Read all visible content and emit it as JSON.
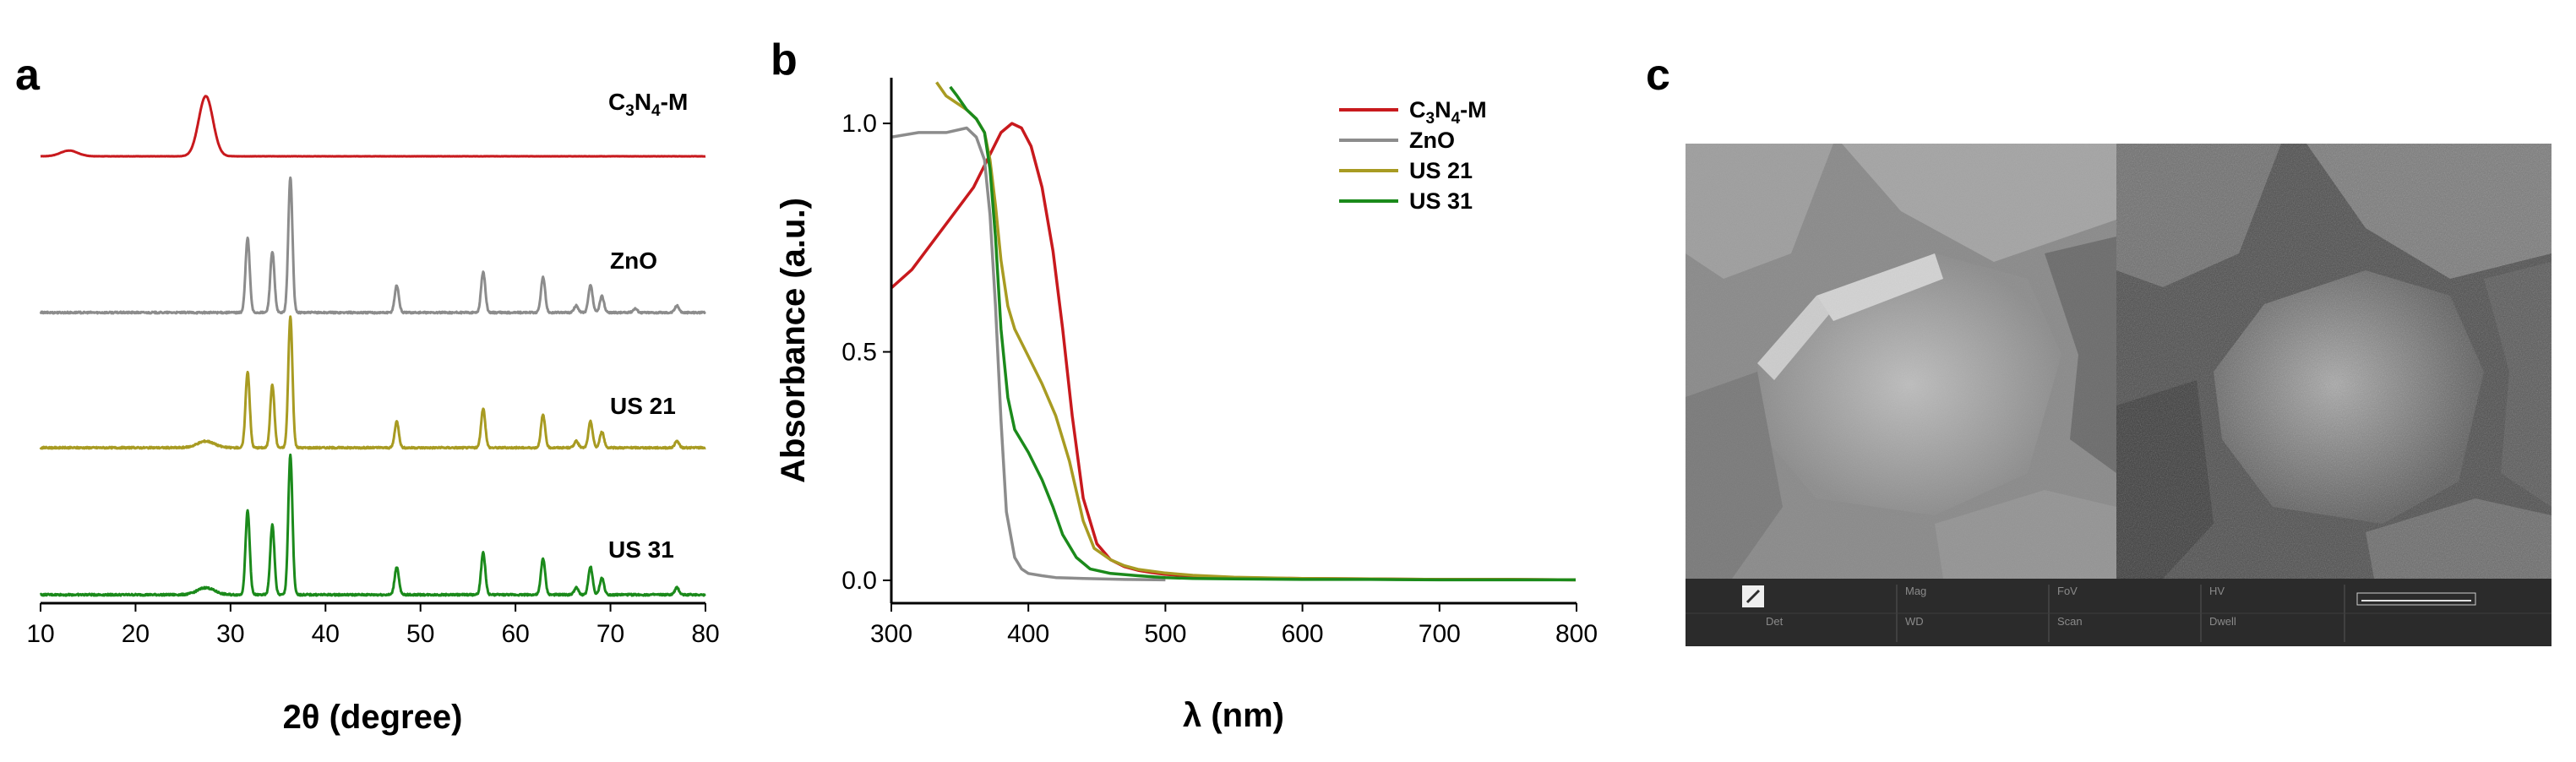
{
  "chart_data": [
    {
      "panel": "a",
      "type": "line",
      "xlabel": "2θ (degree)",
      "ylabel": "",
      "xlim": [
        10,
        80
      ],
      "xticks": [
        10,
        20,
        30,
        40,
        50,
        60,
        70,
        80
      ],
      "series": [
        {
          "name": "C3N4-M",
          "label_parts": [
            "C",
            "3",
            "N",
            "4",
            "-M"
          ],
          "color": "#c8191d",
          "peaks": [
            {
              "x": 13.0,
              "h": 0.09,
              "w": 0.9
            },
            {
              "x": 27.4,
              "h": 0.95,
              "w": 0.75
            }
          ]
        },
        {
          "name": "ZnO",
          "label": "ZnO",
          "color": "#8c8c8c",
          "peaks": [
            {
              "x": 31.8,
              "h": 0.55
            },
            {
              "x": 34.4,
              "h": 0.45
            },
            {
              "x": 36.3,
              "h": 1.0
            },
            {
              "x": 47.5,
              "h": 0.2
            },
            {
              "x": 56.6,
              "h": 0.3
            },
            {
              "x": 62.9,
              "h": 0.26
            },
            {
              "x": 66.4,
              "h": 0.05
            },
            {
              "x": 67.9,
              "h": 0.2
            },
            {
              "x": 69.1,
              "h": 0.12
            },
            {
              "x": 72.6,
              "h": 0.03
            },
            {
              "x": 77.0,
              "h": 0.05
            }
          ]
        },
        {
          "name": "US 21",
          "label": "US 21",
          "color": "#a89b22",
          "peaks": [
            {
              "x": 27.4,
              "h": 0.05,
              "w": 0.9
            },
            {
              "x": 31.8,
              "h": 0.58
            },
            {
              "x": 34.4,
              "h": 0.48
            },
            {
              "x": 36.3,
              "h": 1.0
            },
            {
              "x": 47.5,
              "h": 0.2
            },
            {
              "x": 56.6,
              "h": 0.3
            },
            {
              "x": 62.9,
              "h": 0.25
            },
            {
              "x": 66.4,
              "h": 0.05
            },
            {
              "x": 67.9,
              "h": 0.2
            },
            {
              "x": 69.1,
              "h": 0.12
            },
            {
              "x": 77.0,
              "h": 0.05
            }
          ]
        },
        {
          "name": "US 31",
          "label": "US 31",
          "color": "#1b8a1b",
          "peaks": [
            {
              "x": 27.4,
              "h": 0.05,
              "w": 0.9
            },
            {
              "x": 31.8,
              "h": 0.6
            },
            {
              "x": 34.4,
              "h": 0.5
            },
            {
              "x": 36.3,
              "h": 1.0
            },
            {
              "x": 47.5,
              "h": 0.2
            },
            {
              "x": 56.6,
              "h": 0.3
            },
            {
              "x": 62.9,
              "h": 0.26
            },
            {
              "x": 66.4,
              "h": 0.05
            },
            {
              "x": 67.9,
              "h": 0.2
            },
            {
              "x": 69.1,
              "h": 0.12
            },
            {
              "x": 77.0,
              "h": 0.05
            }
          ]
        }
      ]
    },
    {
      "panel": "b",
      "type": "line",
      "xlabel": "λ (nm)",
      "ylabel": "Absorbance (a.u.)",
      "xlim": [
        300,
        800
      ],
      "ylim": [
        -0.05,
        1.1
      ],
      "xticks": [
        300,
        400,
        500,
        600,
        700,
        800
      ],
      "yticks": [
        "0.0",
        "0.5",
        "1.0"
      ],
      "legend_position": "top-right",
      "series": [
        {
          "name": "C3N4-M",
          "label_parts": [
            "C",
            "3",
            "N",
            "4",
            "-M"
          ],
          "color": "#c8191d",
          "x": [
            300,
            315,
            330,
            345,
            360,
            370,
            380,
            388,
            395,
            402,
            410,
            418,
            425,
            432,
            440,
            450,
            460,
            470,
            480,
            490,
            500,
            520,
            550,
            600,
            650,
            700,
            750,
            800
          ],
          "y": [
            0.64,
            0.68,
            0.74,
            0.8,
            0.86,
            0.92,
            0.98,
            1.0,
            0.99,
            0.95,
            0.86,
            0.72,
            0.55,
            0.36,
            0.18,
            0.08,
            0.045,
            0.03,
            0.022,
            0.017,
            0.013,
            0.009,
            0.006,
            0.004,
            0.003,
            0.002,
            0.002,
            0.001
          ]
        },
        {
          "name": "ZnO",
          "label": "ZnO",
          "color": "#8c8c8c",
          "x": [
            300,
            320,
            340,
            355,
            362,
            368,
            372,
            376,
            380,
            384,
            390,
            395,
            400,
            410,
            420,
            440,
            470,
            500
          ],
          "y": [
            0.97,
            0.98,
            0.98,
            0.99,
            0.97,
            0.92,
            0.8,
            0.6,
            0.35,
            0.15,
            0.05,
            0.025,
            0.015,
            0.01,
            0.006,
            0.004,
            0.002,
            0.001
          ]
        },
        {
          "name": "US 21",
          "label": "US 21",
          "color": "#a89b22",
          "x": [
            333,
            340,
            345,
            355,
            362,
            368,
            372,
            376,
            380,
            385,
            390,
            400,
            410,
            420,
            430,
            440,
            448,
            460,
            470,
            480,
            500,
            520,
            550,
            600,
            650,
            700,
            750,
            800
          ],
          "y": [
            1.09,
            1.06,
            1.05,
            1.03,
            1.01,
            0.98,
            0.92,
            0.82,
            0.7,
            0.6,
            0.55,
            0.49,
            0.43,
            0.36,
            0.26,
            0.13,
            0.07,
            0.045,
            0.032,
            0.024,
            0.016,
            0.011,
            0.007,
            0.004,
            0.003,
            0.002,
            0.002,
            0.001
          ]
        },
        {
          "name": "US 31",
          "label": "US 31",
          "color": "#1b8a1b",
          "x": [
            343,
            348,
            355,
            362,
            368,
            372,
            376,
            380,
            385,
            390,
            400,
            410,
            418,
            425,
            435,
            445,
            460,
            480,
            500,
            520,
            550,
            600,
            650,
            700,
            750,
            800
          ],
          "y": [
            1.08,
            1.06,
            1.03,
            1.01,
            0.98,
            0.9,
            0.75,
            0.55,
            0.4,
            0.33,
            0.28,
            0.22,
            0.16,
            0.1,
            0.05,
            0.025,
            0.015,
            0.01,
            0.006,
            0.004,
            0.003,
            0.002,
            0.002,
            0.001,
            0.001,
            0.001
          ]
        }
      ]
    }
  ],
  "panels": {
    "a": "a",
    "b": "b",
    "c": "c"
  },
  "sem": {
    "labels": {
      "mag": "Mag",
      "fov": "FoV",
      "hv": "HV",
      "det": "Det",
      "scan": "Scan",
      "wd": "WD",
      "dwell": "Dwell"
    }
  }
}
